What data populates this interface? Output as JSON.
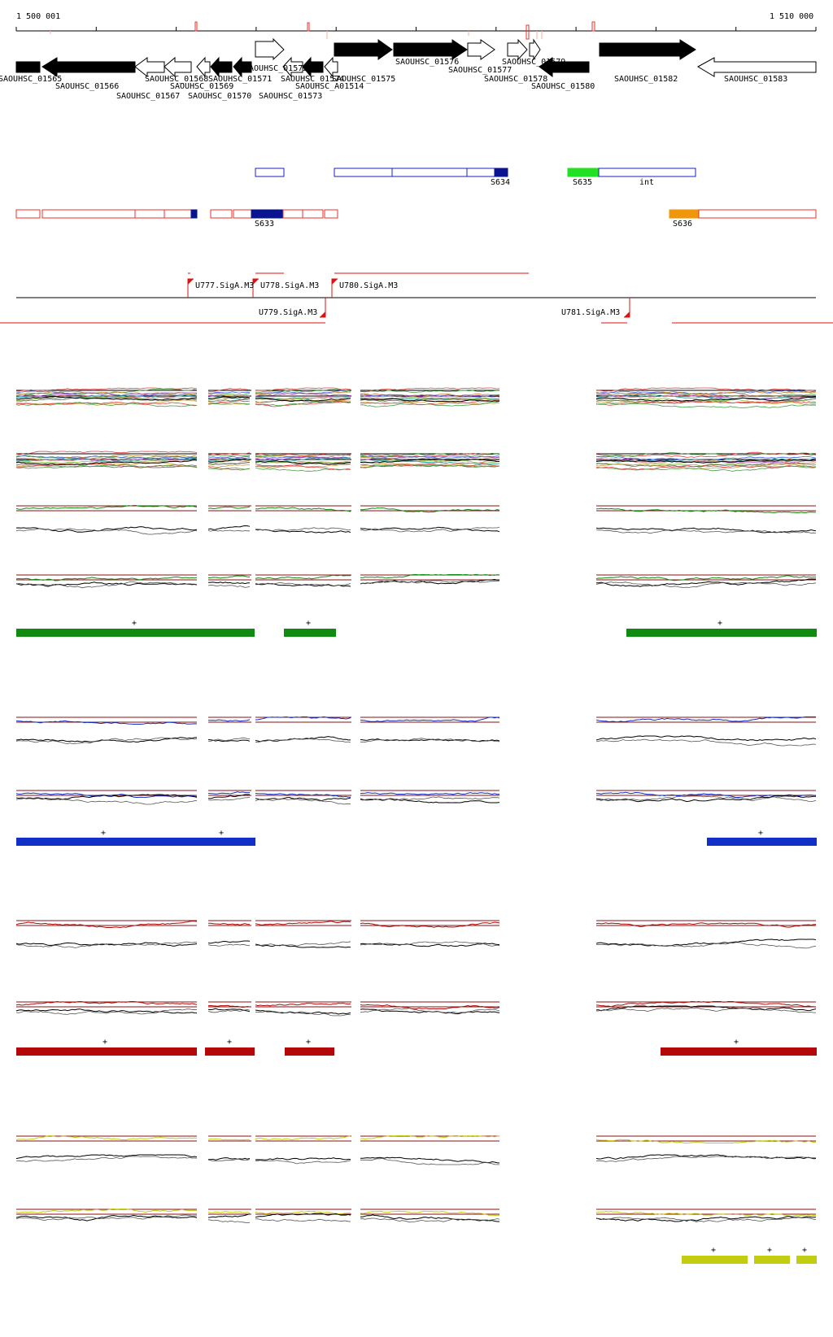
{
  "colors": {
    "gene_fwd_filled": "#000000",
    "gene_rev_open": "#ffffff",
    "segment_blue": "#1a22c8",
    "segment_red": "#e83030",
    "segment_dark_blue": "#0a1490",
    "segment_green": "#22e022",
    "segment_orange": "#f0960a",
    "promoter_red": "#e01010",
    "green_bar": "#108a10",
    "blue_bar": "#1030c8",
    "red_bar": "#b40808",
    "yellow_bar": "#c2cc10",
    "ref_line_dark_red": "#8a1010"
  },
  "ruler": {
    "start_label": "1 500 001",
    "end_label": "1 510 000",
    "start": 1500001,
    "end": 1510000
  },
  "genes": {
    "top_row": [
      {
        "label": "SAOUHSC_01572",
        "strand": "+",
        "filled": false
      },
      {
        "label": "SAOUHSC_01576",
        "strand": "+",
        "filled": true
      },
      {
        "label": "SAOUHSC_01577",
        "strand": "+",
        "filled": false
      },
      {
        "label": "SAOUHSC_01579",
        "strand": "+",
        "filled": false
      }
    ],
    "bottom_row": [
      {
        "label": "SAOUHSC_01565",
        "strand": "-",
        "filled": true
      },
      {
        "label": "SAOUHSC_01566",
        "strand": "-",
        "filled": true
      },
      {
        "label": "SAOUHSC_01567",
        "strand": "-",
        "filled": false
      },
      {
        "label": "SAOUHSC_01568",
        "strand": "-",
        "filled": false
      },
      {
        "label": "SAOUHSC_01569",
        "strand": "-",
        "filled": false
      },
      {
        "label": "SAOUHSC_01570",
        "strand": "-",
        "filled": true
      },
      {
        "label": "SAOUHSC_01571",
        "strand": "-",
        "filled": true
      },
      {
        "label": "SAOUHSC_01573",
        "strand": "-",
        "filled": true
      },
      {
        "label": "SAOUHSC_01574",
        "strand": "-",
        "filled": false
      },
      {
        "label": "SAOUHSC_A01514",
        "strand": "-",
        "filled": false
      },
      {
        "label": "SAOUHSC_01575",
        "strand": "+",
        "filled": true
      },
      {
        "label": "SAOUHSC_01578",
        "strand": "+",
        "filled": false
      },
      {
        "label": "SAOUHSC_01580",
        "strand": "-",
        "filled": true
      },
      {
        "label": "SAOUHSC_01582",
        "strand": "+",
        "filled": true
      },
      {
        "label": "SAOUHSC_01583",
        "strand": "-",
        "filled": false
      }
    ]
  },
  "segments": {
    "forward_labels": [
      "S634",
      "S635",
      "int"
    ],
    "reverse_labels": [
      "S633",
      "S636"
    ]
  },
  "promoters": {
    "forward": [
      "U777.SigA.M3",
      "U778.SigA.M3",
      "U780.SigA.M3"
    ],
    "reverse": [
      "U779.SigA.M3",
      "U781.SigA.M3"
    ]
  },
  "condition_bars": {
    "marker": "+",
    "green_count": 3,
    "blue_count": 2,
    "red_count": 4,
    "yellow_count": 3
  }
}
